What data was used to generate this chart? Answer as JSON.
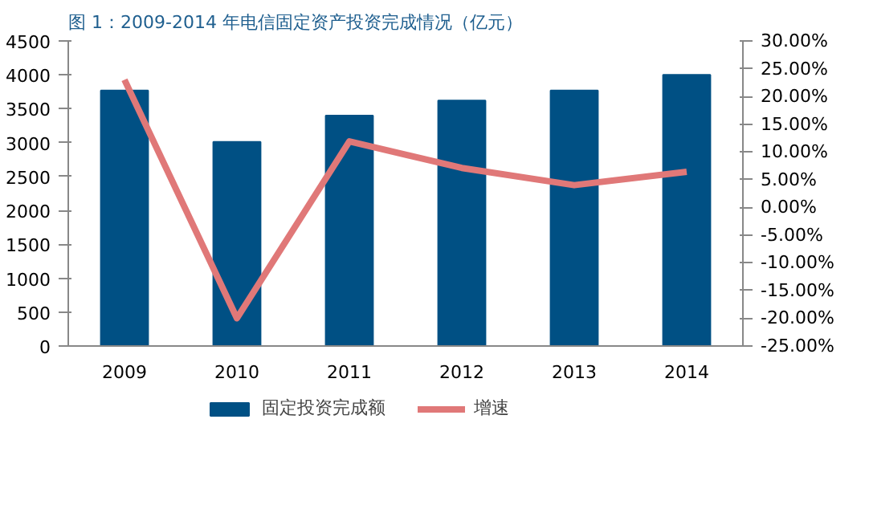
{
  "chart_data": {
    "type": "bar",
    "title": "图 1：2009-2014 年电信固定资产投资完成情况（亿元）",
    "categories": [
      "2009",
      "2010",
      "2011",
      "2012",
      "2013",
      "2014"
    ],
    "series": [
      {
        "name": "固定投资完成额",
        "color": "#005084",
        "values": [
          3770,
          3010,
          3400,
          3620,
          3770,
          4000
        ]
      },
      {
        "name": "增速",
        "type": "line",
        "axis": "y2",
        "color": "#e07878",
        "values": [
          23.0,
          -20.0,
          11.9,
          7.1,
          4.0,
          6.4
        ]
      }
    ],
    "ylim": [
      0,
      4500
    ],
    "yticks": [
      0,
      500,
      1000,
      1500,
      2000,
      2500,
      3000,
      3500,
      4000,
      4500
    ],
    "y2lim": [
      -25,
      30
    ],
    "y2ticks": [
      {
        "value": -25,
        "label": "-25.00%"
      },
      {
        "value": -20,
        "label": "-20.00%"
      },
      {
        "value": -15,
        "label": "-15.00%"
      },
      {
        "value": -10,
        "label": "-10.00%"
      },
      {
        "value": -5,
        "label": "-5.00%"
      },
      {
        "value": 0,
        "label": "0.00%"
      },
      {
        "value": 5,
        "label": "5.00%"
      },
      {
        "value": 10,
        "label": "10.00%"
      },
      {
        "value": 15,
        "label": "15.00%"
      },
      {
        "value": 20,
        "label": "20.00%"
      },
      {
        "value": 25,
        "label": "25.00%"
      },
      {
        "value": 30,
        "label": "30.00%"
      }
    ],
    "grid": false,
    "legend": "bottom"
  }
}
